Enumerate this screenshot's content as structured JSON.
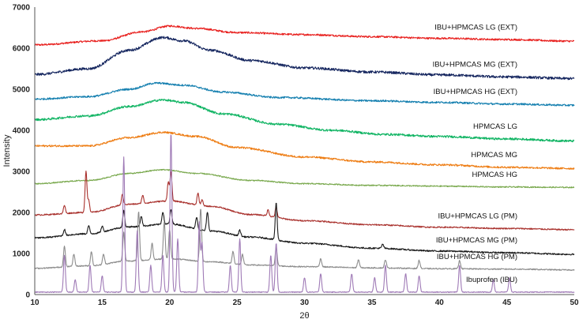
{
  "chart_data": {
    "type": "line",
    "title": "",
    "xlabel": "2θ",
    "ylabel": "Intensity",
    "xlim": [
      10,
      50
    ],
    "ylim": [
      0,
      7000
    ],
    "x_ticks": [
      10,
      15,
      20,
      25,
      30,
      35,
      40,
      45,
      50
    ],
    "y_ticks": [
      0,
      1000,
      2000,
      3000,
      4000,
      5000,
      6000,
      7000
    ],
    "grid": false,
    "legend": "inline labels at right",
    "series": [
      {
        "name": "IBU+HPMCAS LG (EXT)",
        "color": "#e8201e",
        "baseline": [
          [
            10,
            6080
          ],
          [
            15,
            6180
          ],
          [
            18,
            6400
          ],
          [
            20,
            6540
          ],
          [
            22,
            6480
          ],
          [
            25,
            6380
          ],
          [
            30,
            6330
          ],
          [
            35,
            6280
          ],
          [
            40,
            6240
          ],
          [
            45,
            6210
          ],
          [
            50,
            6170
          ]
        ],
        "noise": 22,
        "peaks": []
      },
      {
        "name": "IBU+HPMCAS MG (EXT)",
        "color": "#14255e",
        "baseline": [
          [
            10,
            5360
          ],
          [
            14,
            5500
          ],
          [
            17,
            5950
          ],
          [
            19.5,
            6260
          ],
          [
            21,
            6180
          ],
          [
            23,
            5950
          ],
          [
            26,
            5700
          ],
          [
            30,
            5520
          ],
          [
            35,
            5420
          ],
          [
            40,
            5350
          ],
          [
            45,
            5300
          ],
          [
            50,
            5260
          ]
        ],
        "noise": 30,
        "peaks": []
      },
      {
        "name": "IBU+HPMCAS HG (EXT)",
        "color": "#1680b0",
        "baseline": [
          [
            10,
            4760
          ],
          [
            14,
            4820
          ],
          [
            17,
            5000
          ],
          [
            19,
            5150
          ],
          [
            21,
            5100
          ],
          [
            24,
            4930
          ],
          [
            28,
            4800
          ],
          [
            35,
            4720
          ],
          [
            40,
            4680
          ],
          [
            45,
            4640
          ],
          [
            50,
            4610
          ]
        ],
        "noise": 22,
        "peaks": []
      },
      {
        "name": "HPMCAS LG",
        "color": "#10b463",
        "baseline": [
          [
            10,
            4260
          ],
          [
            14,
            4350
          ],
          [
            17,
            4580
          ],
          [
            19.5,
            4740
          ],
          [
            21,
            4680
          ],
          [
            24,
            4400
          ],
          [
            28,
            4150
          ],
          [
            32,
            4000
          ],
          [
            36,
            3900
          ],
          [
            40,
            3850
          ],
          [
            45,
            3790
          ],
          [
            50,
            3740
          ]
        ],
        "noise": 26,
        "peaks": []
      },
      {
        "name": "HPMCAS MG",
        "color": "#ee7d14",
        "baseline": [
          [
            10,
            3620
          ],
          [
            14,
            3620
          ],
          [
            17,
            3820
          ],
          [
            19.5,
            3950
          ],
          [
            22,
            3850
          ],
          [
            25,
            3580
          ],
          [
            30,
            3350
          ],
          [
            35,
            3230
          ],
          [
            40,
            3160
          ],
          [
            45,
            3100
          ],
          [
            50,
            3070
          ]
        ],
        "noise": 22,
        "peaks": []
      },
      {
        "name": "HPMCAS HG",
        "color": "#78a84c",
        "baseline": [
          [
            10,
            2700
          ],
          [
            14,
            2780
          ],
          [
            17,
            2950
          ],
          [
            19.5,
            3040
          ],
          [
            22,
            2950
          ],
          [
            26,
            2780
          ],
          [
            30,
            2700
          ],
          [
            35,
            2660
          ],
          [
            40,
            2640
          ],
          [
            45,
            2620
          ],
          [
            50,
            2610
          ]
        ],
        "noise": 14,
        "peaks": []
      },
      {
        "name": "IBU+HPMCAS LG (PM)",
        "color": "#a9312d",
        "baseline": [
          [
            10,
            1940
          ],
          [
            14,
            2000
          ],
          [
            17,
            2200
          ],
          [
            20,
            2280
          ],
          [
            23,
            2150
          ],
          [
            26,
            1950
          ],
          [
            30,
            1800
          ],
          [
            35,
            1700
          ],
          [
            40,
            1640
          ],
          [
            45,
            1610
          ],
          [
            50,
            1580
          ]
        ],
        "noise": 16,
        "peaks": [
          [
            12.2,
            200
          ],
          [
            13.8,
            1000
          ],
          [
            14.0,
            300
          ],
          [
            16.5,
            250
          ],
          [
            18.0,
            200
          ],
          [
            19.9,
            450
          ],
          [
            20.1,
            700
          ],
          [
            22.1,
            300
          ],
          [
            22.4,
            150
          ],
          [
            27.3,
            150
          ],
          [
            27.9,
            250
          ]
        ]
      },
      {
        "name": "IBU+HPMCAS MG (PM)",
        "color": "#1a1a1a",
        "baseline": [
          [
            10,
            1380
          ],
          [
            14,
            1480
          ],
          [
            17,
            1650
          ],
          [
            20,
            1720
          ],
          [
            23,
            1550
          ],
          [
            26,
            1400
          ],
          [
            30,
            1250
          ],
          [
            35,
            1130
          ],
          [
            40,
            1060
          ],
          [
            45,
            1020
          ],
          [
            50,
            980
          ]
        ],
        "noise": 18,
        "peaks": [
          [
            12.2,
            150
          ],
          [
            14.0,
            200
          ],
          [
            15.0,
            150
          ],
          [
            16.6,
            400
          ],
          [
            17.9,
            250
          ],
          [
            19.5,
            300
          ],
          [
            20.1,
            350
          ],
          [
            22.0,
            300
          ],
          [
            22.8,
            450
          ],
          [
            25.2,
            150
          ],
          [
            27.9,
            900
          ],
          [
            35.8,
            100
          ]
        ]
      },
      {
        "name": "IBU+HPMCAS HG (PM)",
        "color": "#8c8c8c",
        "baseline": [
          [
            10,
            640
          ],
          [
            14,
            700
          ],
          [
            17,
            820
          ],
          [
            20,
            870
          ],
          [
            23,
            800
          ],
          [
            26,
            720
          ],
          [
            30,
            680
          ],
          [
            35,
            650
          ],
          [
            40,
            630
          ],
          [
            45,
            620
          ],
          [
            50,
            600
          ]
        ],
        "noise": 14,
        "peaks": [
          [
            12.2,
            500
          ],
          [
            12.9,
            300
          ],
          [
            14.2,
            350
          ],
          [
            15.1,
            250
          ],
          [
            16.6,
            700
          ],
          [
            17.7,
            1200
          ],
          [
            18.7,
            400
          ],
          [
            19.6,
            900
          ],
          [
            20.0,
            700
          ],
          [
            22.3,
            1300
          ],
          [
            24.7,
            300
          ],
          [
            25.4,
            250
          ],
          [
            27.9,
            450
          ],
          [
            31.2,
            200
          ],
          [
            34.0,
            200
          ],
          [
            36.0,
            200
          ],
          [
            38.5,
            200
          ],
          [
            41.5,
            200
          ]
        ]
      },
      {
        "name": "Ibuprofen (IBU)",
        "color": "#9f7ab6",
        "baseline": [
          [
            10,
            60
          ],
          [
            50,
            60
          ]
        ],
        "noise": 10,
        "peaks": [
          [
            12.2,
            900
          ],
          [
            13.0,
            300
          ],
          [
            14.1,
            650
          ],
          [
            15.0,
            400
          ],
          [
            16.6,
            3300
          ],
          [
            17.6,
            1500
          ],
          [
            18.6,
            650
          ],
          [
            19.5,
            900
          ],
          [
            20.1,
            3900
          ],
          [
            20.6,
            1300
          ],
          [
            22.2,
            1700
          ],
          [
            22.4,
            1200
          ],
          [
            24.5,
            650
          ],
          [
            25.2,
            1300
          ],
          [
            27.5,
            900
          ],
          [
            27.9,
            1200
          ],
          [
            30.0,
            350
          ],
          [
            31.2,
            450
          ],
          [
            33.5,
            450
          ],
          [
            35.2,
            350
          ],
          [
            36.0,
            650
          ],
          [
            37.5,
            450
          ],
          [
            38.5,
            400
          ],
          [
            41.5,
            650
          ],
          [
            44.0,
            300
          ],
          [
            45.2,
            350
          ]
        ]
      }
    ]
  }
}
